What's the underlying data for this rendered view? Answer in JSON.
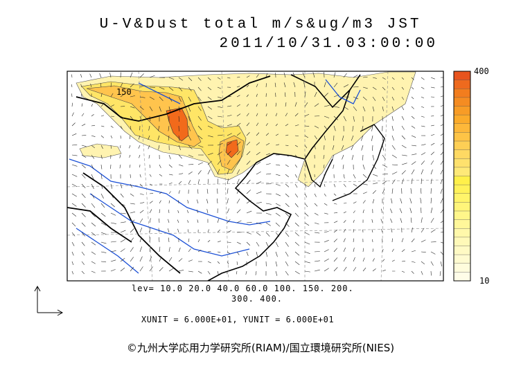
{
  "title": {
    "line1": "U-V&Dust total m/s&ug/m3 JST",
    "line2": "2011/10/31.03:00:00"
  },
  "map": {
    "contour_label": "150",
    "land_color": "#ffffff",
    "dust_colors": [
      "#fff3b0",
      "#ffe566",
      "#ffc44d",
      "#ff9a2e",
      "#f26a1b"
    ]
  },
  "levels": {
    "line1": "lev= 10.0 20.0 40.0 60.0 100. 150. 200.",
    "line2": "300. 400."
  },
  "units": {
    "text": "XUNIT = 6.000E+01, YUNIT = 6.000E+01"
  },
  "colorbar": {
    "max_label": "400",
    "min_label": "10",
    "colors": [
      "#e8541e",
      "#ee6a1e",
      "#f27d1e",
      "#f58c22",
      "#f89c26",
      "#fbab2b",
      "#fdb83a",
      "#fec446",
      "#fecf55",
      "#fed963",
      "#fee16d",
      "#fee978",
      "#fff04a",
      "#fff25a",
      "#fff46a",
      "#fff57a",
      "#fff68a",
      "#fff79a",
      "#fff8aa",
      "#fff9b8",
      "#fffac4",
      "#fffbd0",
      "#fffcdc",
      "#fffde8"
    ]
  },
  "copyright": "©九州大学応用力学研究所(RIAM)/国立環境研究所(NIES)"
}
